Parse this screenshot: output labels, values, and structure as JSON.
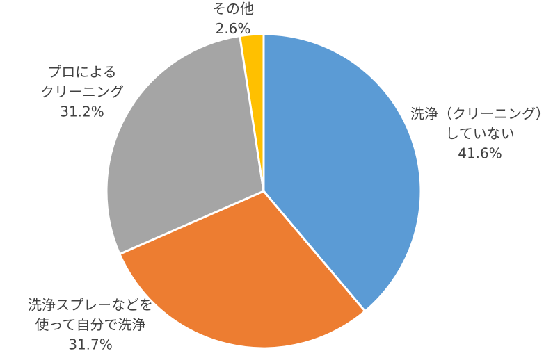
{
  "chart_data": {
    "type": "pie",
    "categories": [
      [
        "洗浄（クリーニング）",
        "していない"
      ],
      [
        "洗浄スプレーなどを",
        "使って自分で洗浄"
      ],
      [
        "プロによる",
        "クリーニング"
      ],
      [
        "その他"
      ]
    ],
    "values": [
      41.6,
      31.7,
      31.2,
      2.6
    ],
    "value_labels": [
      "41.6%",
      "31.7%",
      "31.2%",
      "2.6%"
    ],
    "colors": [
      "#5b9bd5",
      "#ed7d31",
      "#a5a5a5",
      "#ffc000"
    ]
  }
}
